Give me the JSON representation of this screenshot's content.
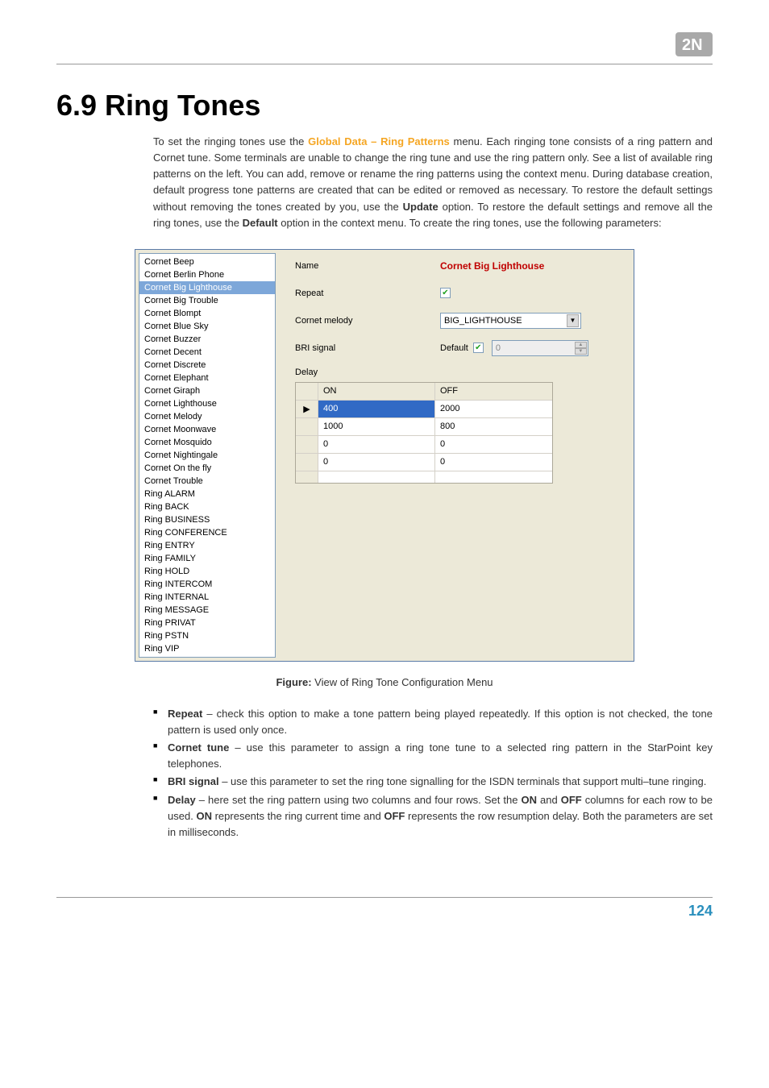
{
  "logo": {
    "text": "2N",
    "bg": "#a9a9a9",
    "fg": "#ffffff"
  },
  "heading": "6.9 Ring Tones",
  "intro": {
    "pre": "To set the ringing tones use the ",
    "menu": "Global Data – Ring Patterns",
    "post1": " menu. Each ringing tone consists of a ring pattern and Cornet tune. Some terminals are unable to change the ring tune and use the ring pattern only. See a list of available ring patterns on the left. You can add, remove or rename the ring patterns using the context menu. During database creation, default progress tone patterns are created that can be edited or removed as necessary. To restore the default settings without removing the tones created by you, use the ",
    "update": "Update",
    "post2": " option. To restore the default settings and remove all the ring tones, use the ",
    "default": "Default",
    "post3": " option in the context menu. To create the ring tones, use the following parameters:"
  },
  "screenshot": {
    "list": [
      "Cornet Beep",
      "Cornet Berlin Phone",
      "Cornet Big Lighthouse",
      "Cornet Big Trouble",
      "Cornet Blompt",
      "Cornet Blue Sky",
      "Cornet Buzzer",
      "Cornet Decent",
      "Cornet Discrete",
      "Cornet Elephant",
      "Cornet Giraph",
      "Cornet Lighthouse",
      "Cornet Melody",
      "Cornet Moonwave",
      "Cornet Mosquido",
      "Cornet Nightingale",
      "Cornet On the fly",
      "Cornet Trouble",
      "Ring ALARM",
      "Ring BACK",
      "Ring BUSINESS",
      "Ring CONFERENCE",
      "Ring ENTRY",
      "Ring FAMILY",
      "Ring HOLD",
      "Ring INTERCOM",
      "Ring INTERNAL",
      "Ring MESSAGE",
      "Ring PRIVAT",
      "Ring PSTN",
      "Ring VIP"
    ],
    "selected_index": 2,
    "name_label": "Name",
    "name_value": "Cornet Big Lighthouse",
    "repeat_label": "Repeat",
    "repeat_checked": true,
    "melody_label": "Cornet melody",
    "melody_value": "BIG_LIGHTHOUSE",
    "bri_label": "BRI signal",
    "bri_default_label": "Default",
    "bri_default_checked": true,
    "bri_value": "0",
    "delay_label": "Delay",
    "delay_headers": [
      "ON",
      "OFF"
    ],
    "delay_rows": [
      {
        "on": "400",
        "off": "2000",
        "selected": true
      },
      {
        "on": "1000",
        "off": "800"
      },
      {
        "on": "0",
        "off": "0"
      },
      {
        "on": "0",
        "off": "0"
      }
    ]
  },
  "caption": {
    "label": "Figure:",
    "text": " View of Ring Tone Configuration Menu"
  },
  "params": {
    "repeat": {
      "name": "Repeat",
      "text": " – check this option to make a tone pattern being played repeatedly. If this option is not checked, the tone pattern is used only once."
    },
    "cornet": {
      "name": "Cornet tune",
      "text": " – use this parameter to assign a ring tone tune to a selected ring pattern in the StarPoint key telephones."
    },
    "bri": {
      "name": "BRI signal",
      "text": " – use this parameter to set the ring tone signalling for the ISDN terminals that support multi–tune ringing."
    },
    "delay": {
      "name": "Delay",
      "pre": " – here set the ring pattern using two columns and four rows. Set the ",
      "on": "ON",
      "mid1": " and ",
      "off": "OFF",
      "mid2": " columns for each row to be used. ",
      "on2": "ON",
      "mid3": " represents the ring current time and ",
      "off2": "OFF",
      "post": " represents the row resumption delay. Both the parameters are set in milliseconds."
    }
  },
  "page_number": "124"
}
